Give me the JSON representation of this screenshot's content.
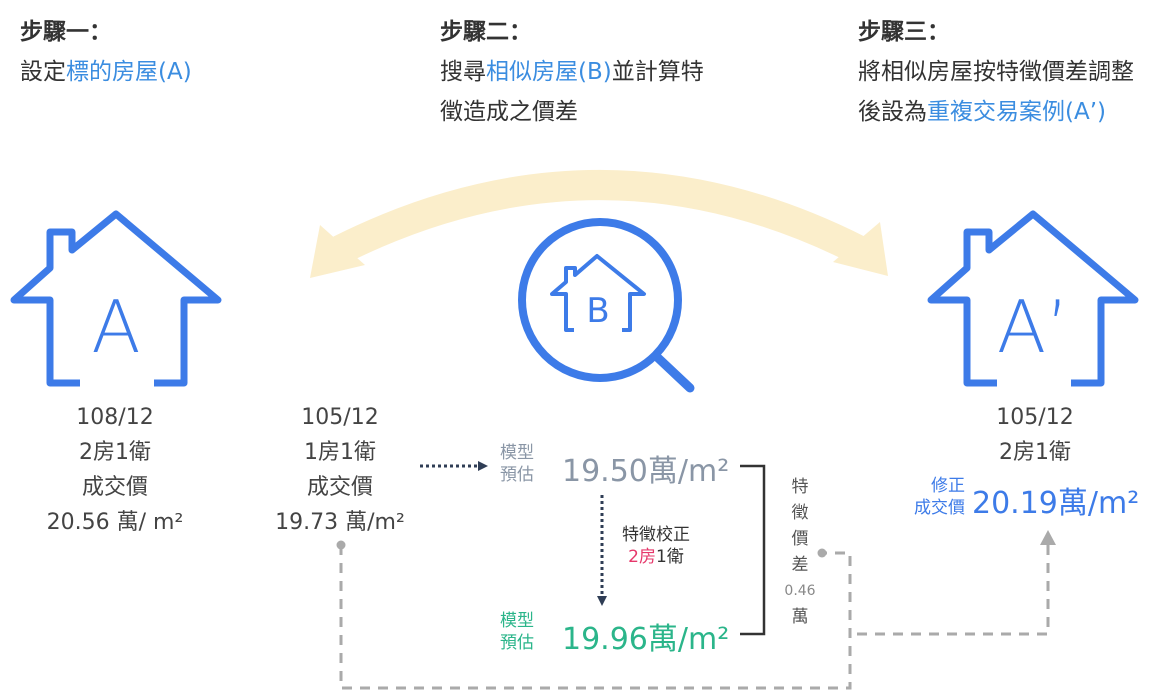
{
  "steps": [
    {
      "label": "步驟一：",
      "prefix": "設定",
      "highlight": "標的房屋(A)"
    },
    {
      "label": "步驟二：",
      "prefix": "搜尋",
      "highlight": "相似房屋(B)",
      "suffix": "並計算特徵造成之價差"
    },
    {
      "label": "步驟三：",
      "prefix": "將相似房屋按特徵價差調整後設為",
      "highlight": "重複交易案例(A’)"
    }
  ],
  "house_a": {
    "icon": "A",
    "date": "108/12",
    "layout": "2房1衛",
    "price_label": "成交價",
    "price": "20.56 萬/ m²"
  },
  "house_b": {
    "icon": "B",
    "date": "105/12",
    "layout": "1房1衛",
    "price_label": "成交價",
    "price": "19.73 萬/m²"
  },
  "estimate_before": {
    "label_1": "模型",
    "label_2": "預估",
    "value": "19.50萬/m²"
  },
  "correction": {
    "title": "特徵校正",
    "changed": "2房",
    "unchanged": "1衛"
  },
  "estimate_after": {
    "label_1": "模型",
    "label_2": "預估",
    "value": "19.96萬/m²"
  },
  "difference": {
    "label": "特徵價差",
    "value": "0.46",
    "unit": "萬"
  },
  "house_a_prime": {
    "icon": "A’",
    "date": "105/12",
    "layout": "2房1衛",
    "price_label_1": "修正",
    "price_label_2": "成交價",
    "price": "20.19萬/m²"
  }
}
